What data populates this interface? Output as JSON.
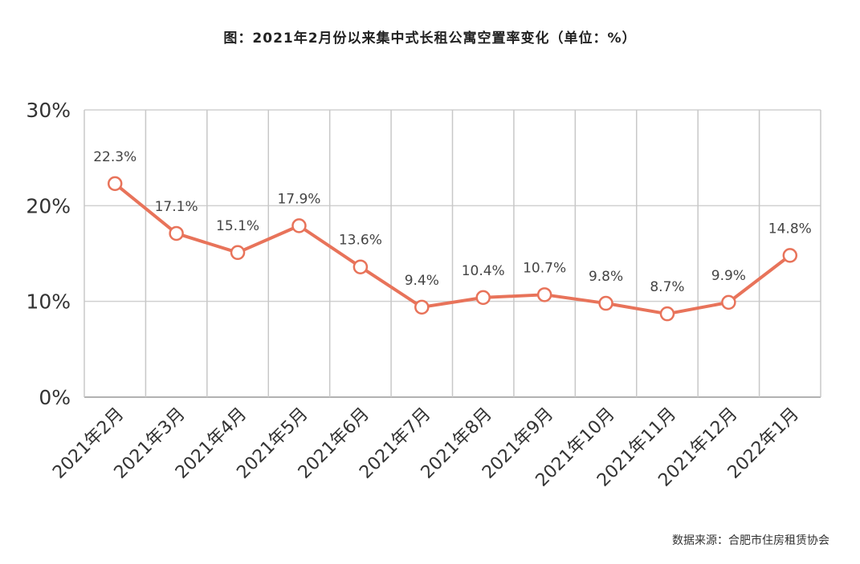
{
  "chart_data": {
    "type": "line",
    "title": "图：2021年2月份以来集中式长租公寓空置率变化（单位：%）",
    "source": "数据来源：合肥市住房租赁协会",
    "categories": [
      "2021年2月",
      "2021年3月",
      "2021年4月",
      "2021年5月",
      "2021年6月",
      "2021年7月",
      "2021年8月",
      "2021年9月",
      "2021年10月",
      "2021年11月",
      "2021年12月",
      "2022年1月"
    ],
    "values": [
      22.3,
      17.1,
      15.1,
      17.9,
      13.6,
      9.4,
      10.4,
      10.7,
      9.8,
      8.7,
      9.9,
      14.8
    ],
    "data_labels": [
      "22.3%",
      "17.1%",
      "15.1%",
      "17.9%",
      "13.6%",
      "9.4%",
      "10.4%",
      "10.7%",
      "9.8%",
      "8.7%",
      "9.9%",
      "14.8%"
    ],
    "yticks": [
      0,
      10,
      20,
      30
    ],
    "ytick_labels": [
      "0%",
      "10%",
      "20%",
      "30%"
    ],
    "ylim": [
      0,
      30
    ],
    "grid": true,
    "line_color": "#e8735a"
  }
}
